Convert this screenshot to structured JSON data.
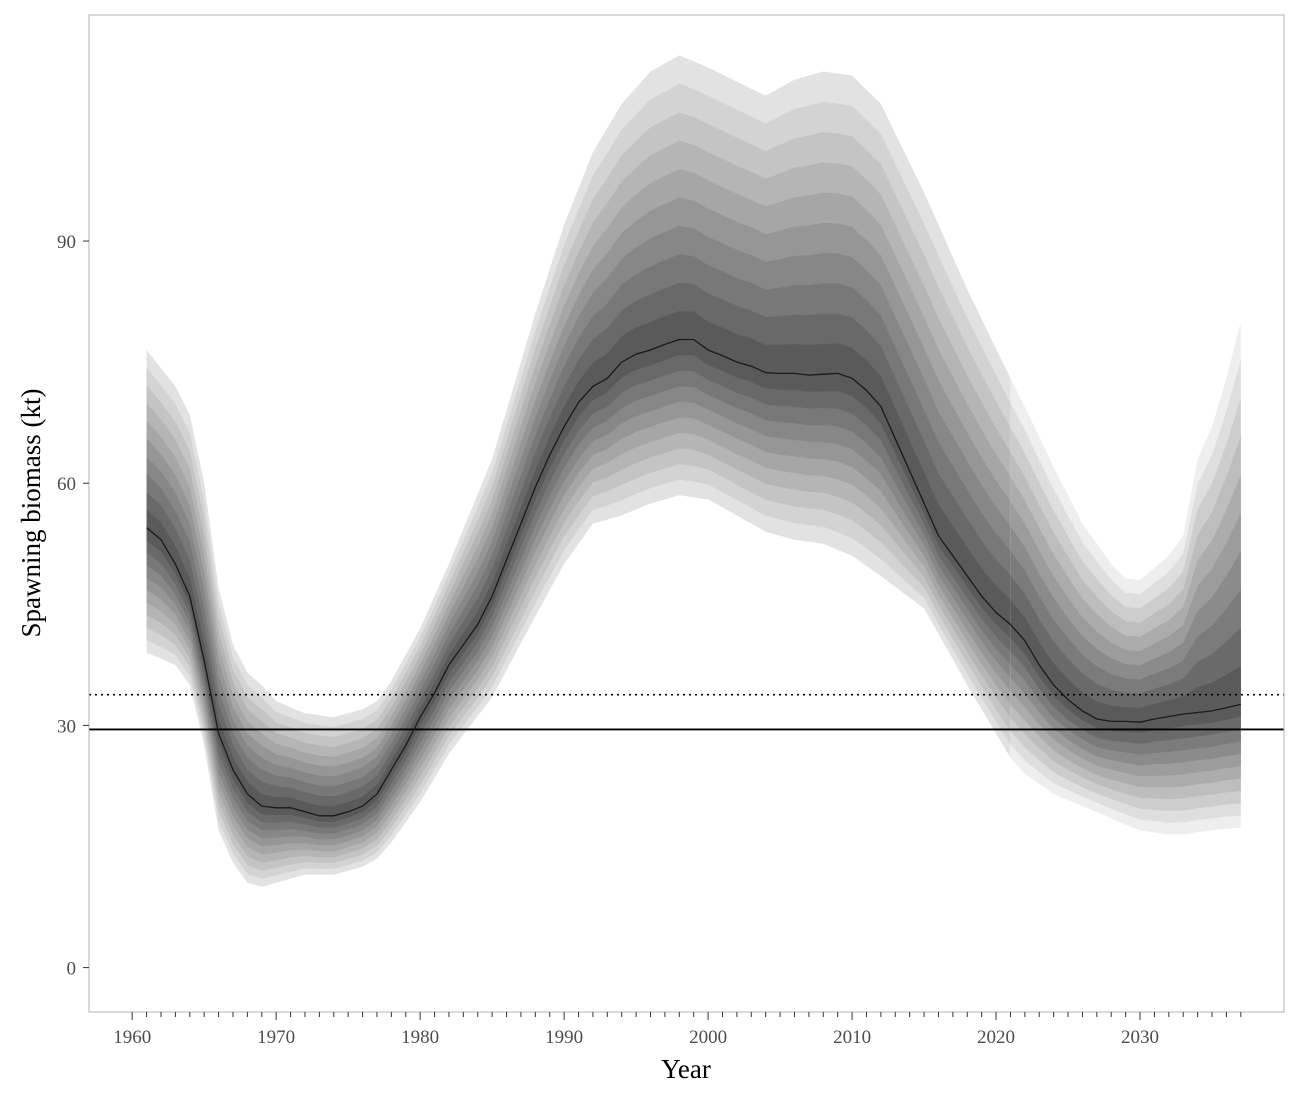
{
  "chart_data": {
    "type": "area",
    "xlabel": "Year",
    "ylabel": "Spawning biomass (kt)",
    "xlim": [
      1957,
      2040
    ],
    "ylim": [
      -5.5,
      118
    ],
    "x_ticks_major": [
      1960,
      1970,
      1980,
      1990,
      2000,
      2010,
      2020,
      2030
    ],
    "x_ticks_minor_step": 1,
    "y_ticks": [
      0,
      30,
      60,
      90
    ],
    "grid": false,
    "legend": "none",
    "projection_start_year": 2021,
    "reference_lines": [
      {
        "y": 29.5,
        "style": "solid"
      },
      {
        "y": 33.8,
        "style": "dotted"
      }
    ],
    "median": {
      "years": [
        1961,
        1962,
        1963,
        1964,
        1965,
        1966,
        1967,
        1968,
        1969,
        1970,
        1971,
        1972,
        1973,
        1974,
        1975,
        1976,
        1977,
        1978,
        1979,
        1980,
        1981,
        1982,
        1983,
        1984,
        1985,
        1986,
        1987,
        1988,
        1989,
        1990,
        1991,
        1992,
        1993,
        1994,
        1995,
        1996,
        1997,
        1998,
        1999,
        2000,
        2001,
        2002,
        2003,
        2004,
        2005,
        2006,
        2007,
        2008,
        2009,
        2010,
        2011,
        2012,
        2013,
        2014,
        2015,
        2016,
        2017,
        2018,
        2019,
        2020,
        2021,
        2022,
        2023,
        2024,
        2025,
        2026,
        2027,
        2028,
        2029,
        2030,
        2031,
        2032,
        2033,
        2034,
        2035,
        2036,
        2037
      ],
      "values": [
        54.5,
        53,
        50,
        46,
        38,
        29,
        24.5,
        21.5,
        20,
        19.8,
        19.8,
        19.3,
        18.8,
        18.8,
        19.3,
        20,
        21.5,
        24.5,
        27.5,
        31,
        34,
        37.5,
        40,
        42.5,
        46,
        50.5,
        55,
        59.5,
        63.5,
        67,
        70,
        72,
        73,
        75,
        76,
        76.5,
        77.2,
        77.8,
        77.8,
        76.5,
        75.8,
        75,
        74.5,
        73.7,
        73.6,
        73.6,
        73.4,
        73.5,
        73.6,
        73,
        71.5,
        69.5,
        65.5,
        61.5,
        57.5,
        53.5,
        51,
        48.5,
        46,
        44,
        42.5,
        40.5,
        37.5,
        35,
        33.2,
        31.8,
        30.8,
        30.5,
        30.5,
        30.4,
        30.8,
        31.1,
        31.4,
        31.6,
        31.8,
        32.2,
        32.6
      ]
    },
    "historical_band": {
      "years": [
        1961,
        1963,
        1964,
        1965,
        1966,
        1967,
        1968,
        1969,
        1970,
        1972,
        1974,
        1976,
        1977,
        1978,
        1980,
        1982,
        1985,
        1988,
        1990,
        1992,
        1994,
        1996,
        1998,
        2000,
        2004,
        2006,
        2008,
        2010,
        2012,
        2015,
        2018,
        2021
      ],
      "outer_upper": [
        76.5,
        72,
        68.5,
        60,
        47,
        40,
        36.5,
        35,
        33,
        31.5,
        31,
        32,
        33,
        35.5,
        42,
        50,
        63,
        81,
        92,
        101,
        107,
        111,
        113,
        111.5,
        108,
        110,
        111,
        110.5,
        107,
        96,
        84,
        73
      ],
      "outer_lower": [
        39,
        37.5,
        35,
        27.5,
        17,
        13,
        10.5,
        10,
        10.5,
        11.5,
        11.5,
        12.5,
        13.5,
        15.5,
        20.5,
        26.5,
        33.5,
        43.5,
        50,
        55,
        56,
        57.5,
        58.5,
        58,
        54,
        53,
        52.5,
        51,
        48.5,
        44.5,
        35,
        26
      ]
    },
    "projection_band": {
      "years": [
        2021,
        2022,
        2024,
        2026,
        2028,
        2029,
        2030,
        2032,
        2033,
        2034,
        2035,
        2036,
        2037
      ],
      "outer_upper": [
        73,
        69.5,
        62,
        55,
        50,
        48.2,
        48,
        51,
        53.5,
        63,
        67,
        73,
        80
      ],
      "outer_lower": [
        26,
        24,
        21.5,
        20,
        18.5,
        17.7,
        17,
        16.5,
        16.5,
        16.8,
        17,
        17.2,
        17.3
      ]
    },
    "band_levels": 10
  }
}
